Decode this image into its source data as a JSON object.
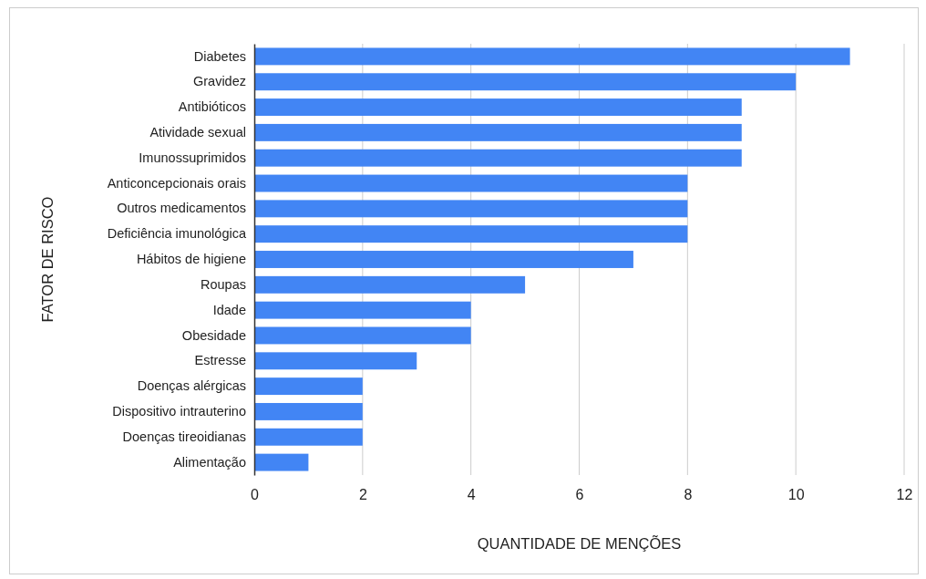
{
  "chart_data": {
    "type": "bar",
    "orientation": "horizontal",
    "xlabel": "QUANTIDADE DE MENÇÕES",
    "ylabel": "FATOR DE RISCO",
    "categories": [
      "Diabetes",
      "Gravidez",
      "Antibióticos",
      "Atividade sexual",
      "Imunossuprimidos",
      "Anticoncepcionais orais",
      "Outros medicamentos",
      "Deficiência imunológica",
      "Hábitos de higiene",
      "Roupas",
      "Idade",
      "Obesidade",
      "Estresse",
      "Doenças alérgicas",
      "Dispositivo intrauterino",
      "Doenças tireoidianas",
      "Alimentação"
    ],
    "values": [
      11,
      10,
      9,
      9,
      9,
      8,
      8,
      8,
      7,
      5,
      4,
      4,
      3,
      2,
      2,
      2,
      1
    ],
    "color": "#4285f4",
    "xlim": [
      0,
      12
    ],
    "xticks": [
      0,
      2,
      4,
      6,
      8,
      10,
      12
    ],
    "grid": "x"
  }
}
